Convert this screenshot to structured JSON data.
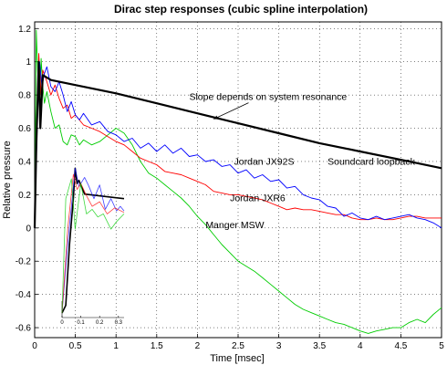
{
  "chart_data": {
    "type": "line",
    "title": "Dirac step responses (cubic spline interpolation)",
    "xlabel": "Time [msec]",
    "ylabel": "Relative pressure",
    "xlim": [
      0,
      5
    ],
    "ylim": [
      -0.66,
      1.24
    ],
    "x_ticks": [
      "0",
      "0.5",
      "1",
      "1.5",
      "2",
      "2.5",
      "3",
      "3.5",
      "4",
      "4.5",
      "5"
    ],
    "y_ticks": [
      "1.2",
      "1",
      "0.8",
      "0.6",
      "0.4",
      "0.2",
      "0",
      "-0.2",
      "-0.4",
      "-0.6"
    ],
    "grid": true,
    "series": [
      {
        "name": "Soundcard loopback",
        "color": "#000000",
        "points": [
          [
            0,
            0
          ],
          [
            0.02,
            0.5
          ],
          [
            0.05,
            1.0
          ],
          [
            0.07,
            0.6
          ],
          [
            0.1,
            0.92
          ],
          [
            0.2,
            0.89
          ],
          [
            0.5,
            0.86
          ],
          [
            1,
            0.81
          ],
          [
            1.5,
            0.75
          ],
          [
            2,
            0.69
          ],
          [
            2.5,
            0.63
          ],
          [
            3,
            0.57
          ],
          [
            3.5,
            0.51
          ],
          [
            4,
            0.46
          ],
          [
            4.5,
            0.41
          ],
          [
            5,
            0.36
          ]
        ]
      },
      {
        "name": "Jordan JX92S",
        "color": "#0000ff",
        "points": [
          [
            0,
            0
          ],
          [
            0.03,
            0.6
          ],
          [
            0.06,
            1.0
          ],
          [
            0.09,
            0.85
          ],
          [
            0.12,
            0.93
          ],
          [
            0.15,
            0.97
          ],
          [
            0.2,
            0.85
          ],
          [
            0.25,
            0.82
          ],
          [
            0.3,
            0.88
          ],
          [
            0.35,
            0.8
          ],
          [
            0.4,
            0.7
          ],
          [
            0.45,
            0.76
          ],
          [
            0.5,
            0.68
          ],
          [
            0.55,
            0.65
          ],
          [
            0.6,
            0.69
          ],
          [
            0.7,
            0.62
          ],
          [
            0.8,
            0.64
          ],
          [
            0.9,
            0.58
          ],
          [
            1.0,
            0.56
          ],
          [
            1.1,
            0.52
          ],
          [
            1.2,
            0.54
          ],
          [
            1.3,
            0.48
          ],
          [
            1.4,
            0.51
          ],
          [
            1.5,
            0.46
          ],
          [
            1.6,
            0.5
          ],
          [
            1.7,
            0.45
          ],
          [
            1.8,
            0.48
          ],
          [
            1.9,
            0.43
          ],
          [
            2.0,
            0.44
          ],
          [
            2.1,
            0.4
          ],
          [
            2.2,
            0.41
          ],
          [
            2.3,
            0.37
          ],
          [
            2.4,
            0.38
          ],
          [
            2.5,
            0.33
          ],
          [
            2.6,
            0.35
          ],
          [
            2.7,
            0.3
          ],
          [
            2.8,
            0.32
          ],
          [
            2.9,
            0.28
          ],
          [
            3.0,
            0.29
          ],
          [
            3.1,
            0.24
          ],
          [
            3.2,
            0.25
          ],
          [
            3.3,
            0.2
          ],
          [
            3.4,
            0.18
          ],
          [
            3.5,
            0.17
          ],
          [
            3.6,
            0.13
          ],
          [
            3.7,
            0.12
          ],
          [
            3.8,
            0.07
          ],
          [
            3.9,
            0.09
          ],
          [
            4.0,
            0.06
          ],
          [
            4.1,
            0.05
          ],
          [
            4.2,
            0.07
          ],
          [
            4.3,
            0.05
          ],
          [
            4.4,
            0.06
          ],
          [
            4.5,
            0.07
          ],
          [
            4.6,
            0.08
          ],
          [
            4.7,
            0.06
          ],
          [
            4.8,
            0.05
          ],
          [
            4.9,
            0.03
          ],
          [
            5.0,
            0.0
          ]
        ]
      },
      {
        "name": "Jordan JXR6",
        "color": "#ff0000",
        "points": [
          [
            0,
            0
          ],
          [
            0.03,
            0.7
          ],
          [
            0.05,
            1.05
          ],
          [
            0.08,
            0.8
          ],
          [
            0.1,
            0.95
          ],
          [
            0.15,
            0.88
          ],
          [
            0.2,
            0.8
          ],
          [
            0.25,
            0.86
          ],
          [
            0.3,
            0.78
          ],
          [
            0.35,
            0.72
          ],
          [
            0.4,
            0.74
          ],
          [
            0.45,
            0.66
          ],
          [
            0.5,
            0.68
          ],
          [
            0.6,
            0.62
          ],
          [
            0.7,
            0.6
          ],
          [
            0.8,
            0.58
          ],
          [
            0.9,
            0.55
          ],
          [
            1.0,
            0.52
          ],
          [
            1.1,
            0.5
          ],
          [
            1.2,
            0.46
          ],
          [
            1.3,
            0.42
          ],
          [
            1.4,
            0.4
          ],
          [
            1.5,
            0.38
          ],
          [
            1.6,
            0.34
          ],
          [
            1.7,
            0.33
          ],
          [
            1.8,
            0.32
          ],
          [
            1.9,
            0.3
          ],
          [
            2.0,
            0.28
          ],
          [
            2.1,
            0.26
          ],
          [
            2.2,
            0.22
          ],
          [
            2.3,
            0.21
          ],
          [
            2.4,
            0.2
          ],
          [
            2.5,
            0.2
          ],
          [
            2.6,
            0.19
          ],
          [
            2.7,
            0.18
          ],
          [
            2.8,
            0.17
          ],
          [
            2.9,
            0.15
          ],
          [
            3.0,
            0.13
          ],
          [
            3.1,
            0.11
          ],
          [
            3.2,
            0.12
          ],
          [
            3.3,
            0.11
          ],
          [
            3.4,
            0.11
          ],
          [
            3.5,
            0.1
          ],
          [
            3.6,
            0.09
          ],
          [
            3.7,
            0.08
          ],
          [
            3.8,
            0.08
          ],
          [
            3.9,
            0.06
          ],
          [
            4.0,
            0.05
          ],
          [
            4.1,
            0.05
          ],
          [
            4.2,
            0.06
          ],
          [
            4.3,
            0.05
          ],
          [
            4.4,
            0.05
          ],
          [
            4.5,
            0.06
          ],
          [
            4.6,
            0.07
          ],
          [
            4.7,
            0.07
          ],
          [
            4.8,
            0.06
          ],
          [
            4.9,
            0.06
          ],
          [
            5.0,
            0.06
          ]
        ]
      },
      {
        "name": "Manger MSW",
        "color": "#00cc00",
        "points": [
          [
            0,
            0
          ],
          [
            0.02,
            1.19
          ],
          [
            0.04,
            0.9
          ],
          [
            0.06,
            0.7
          ],
          [
            0.08,
            1.02
          ],
          [
            0.1,
            0.85
          ],
          [
            0.12,
            0.75
          ],
          [
            0.15,
            0.82
          ],
          [
            0.2,
            0.7
          ],
          [
            0.25,
            0.6
          ],
          [
            0.3,
            0.62
          ],
          [
            0.35,
            0.52
          ],
          [
            0.4,
            0.5
          ],
          [
            0.45,
            0.56
          ],
          [
            0.5,
            0.55
          ],
          [
            0.55,
            0.5
          ],
          [
            0.6,
            0.53
          ],
          [
            0.7,
            0.5
          ],
          [
            0.8,
            0.52
          ],
          [
            0.9,
            0.56
          ],
          [
            1.0,
            0.6
          ],
          [
            1.1,
            0.57
          ],
          [
            1.2,
            0.5
          ],
          [
            1.3,
            0.4
          ],
          [
            1.4,
            0.33
          ],
          [
            1.5,
            0.3
          ],
          [
            1.6,
            0.26
          ],
          [
            1.7,
            0.22
          ],
          [
            1.8,
            0.18
          ],
          [
            1.9,
            0.13
          ],
          [
            2.0,
            0.07
          ],
          [
            2.1,
            0.02
          ],
          [
            2.2,
            -0.04
          ],
          [
            2.3,
            -0.1
          ],
          [
            2.4,
            -0.15
          ],
          [
            2.5,
            -0.2
          ],
          [
            2.6,
            -0.23
          ],
          [
            2.7,
            -0.26
          ],
          [
            2.8,
            -0.3
          ],
          [
            2.9,
            -0.34
          ],
          [
            3.0,
            -0.38
          ],
          [
            3.1,
            -0.42
          ],
          [
            3.2,
            -0.46
          ],
          [
            3.3,
            -0.49
          ],
          [
            3.4,
            -0.51
          ],
          [
            3.5,
            -0.53
          ],
          [
            3.6,
            -0.55
          ],
          [
            3.7,
            -0.57
          ],
          [
            3.8,
            -0.58
          ],
          [
            3.9,
            -0.6
          ],
          [
            4.0,
            -0.62
          ],
          [
            4.1,
            -0.635
          ],
          [
            4.2,
            -0.62
          ],
          [
            4.3,
            -0.61
          ],
          [
            4.4,
            -0.6
          ],
          [
            4.5,
            -0.6
          ],
          [
            4.6,
            -0.57
          ],
          [
            4.7,
            -0.55
          ],
          [
            4.8,
            -0.57
          ],
          [
            4.9,
            -0.52
          ],
          [
            5.0,
            -0.48
          ]
        ]
      }
    ],
    "annotations": [
      {
        "text": "Slope depends on system resonance",
        "x": 1.9,
        "y": 0.77,
        "arrow_to": [
          2.2,
          0.655
        ]
      },
      {
        "text": "Soundcard loopback",
        "x": 3.6,
        "y": 0.38
      },
      {
        "text": "Jordan JX92S",
        "x": 2.45,
        "y": 0.38
      },
      {
        "text": "Jordan JXR6",
        "x": 2.4,
        "y": 0.16
      },
      {
        "text": "Manger MSW",
        "x": 2.1,
        "y": 0.0
      }
    ],
    "inset": {
      "xlim": [
        0,
        0.33
      ],
      "x_ticks": [
        "0",
        "0.1",
        "0.2",
        "0.3"
      ],
      "series": [
        {
          "color": "#000000",
          "points": [
            [
              0,
              -0.65
            ],
            [
              0.02,
              -0.6
            ],
            [
              0.04,
              -0.2
            ],
            [
              0.06,
              0.1
            ],
            [
              0.07,
              0.3
            ],
            [
              0.08,
              0.2
            ],
            [
              0.09,
              0.22
            ],
            [
              0.12,
              0.13
            ],
            [
              0.33,
              0.1
            ]
          ]
        },
        {
          "color": "#0000ff",
          "points": [
            [
              0,
              -0.65
            ],
            [
              0.03,
              -0.2
            ],
            [
              0.07,
              0.3
            ],
            [
              0.09,
              0.18
            ],
            [
              0.12,
              0.24
            ],
            [
              0.14,
              0.19
            ],
            [
              0.17,
              0.1
            ],
            [
              0.2,
              0.19
            ],
            [
              0.23,
              0.03
            ],
            [
              0.26,
              0.1
            ],
            [
              0.29,
              0.02
            ],
            [
              0.31,
              0.05
            ],
            [
              0.33,
              0.02
            ]
          ]
        },
        {
          "color": "#ff0000",
          "points": [
            [
              0,
              -0.65
            ],
            [
              0.03,
              -0.1
            ],
            [
              0.06,
              0.26
            ],
            [
              0.08,
              0.16
            ],
            [
              0.1,
              0.2
            ],
            [
              0.13,
              0.12
            ],
            [
              0.16,
              0.05
            ],
            [
              0.2,
              0.08
            ],
            [
              0.24,
              0.0
            ],
            [
              0.28,
              0.04
            ],
            [
              0.33,
              0.01
            ]
          ]
        },
        {
          "color": "#00cc00",
          "points": [
            [
              0,
              -0.65
            ],
            [
              0.02,
              0.1
            ],
            [
              0.05,
              0.23
            ],
            [
              0.07,
              -0.1
            ],
            [
              0.09,
              0.1
            ],
            [
              0.1,
              0.2
            ],
            [
              0.13,
              0.0
            ],
            [
              0.16,
              0.03
            ],
            [
              0.19,
              -0.02
            ],
            [
              0.22,
              0.0
            ],
            [
              0.26,
              -0.1
            ],
            [
              0.29,
              -0.05
            ],
            [
              0.33,
              0.0
            ]
          ]
        }
      ]
    }
  }
}
